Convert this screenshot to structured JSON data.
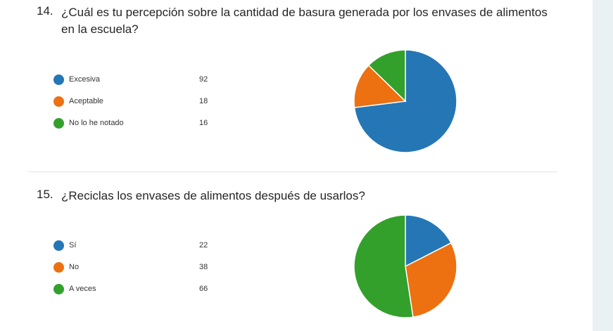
{
  "questions": [
    {
      "number": "14.",
      "text": "¿Cuál es tu percepción sobre la cantidad de basura generada por los envases de alimentos en la escuela?"
    },
    {
      "number": "15.",
      "text": "¿Reciclas los envases de alimentos después de usarlos?"
    }
  ],
  "chart_data": [
    {
      "type": "pie",
      "categories": [
        "Excesiva",
        "Aceptable",
        "No lo he notado"
      ],
      "values": [
        92,
        18,
        16
      ],
      "colors": [
        "#2576b5",
        "#ed7011",
        "#33a02c"
      ],
      "legend_position": "left"
    },
    {
      "type": "pie",
      "categories": [
        "Sí",
        "No",
        "A veces"
      ],
      "values": [
        22,
        38,
        66
      ],
      "colors": [
        "#2576b5",
        "#ed7011",
        "#33a02c"
      ],
      "legend_position": "left"
    }
  ]
}
